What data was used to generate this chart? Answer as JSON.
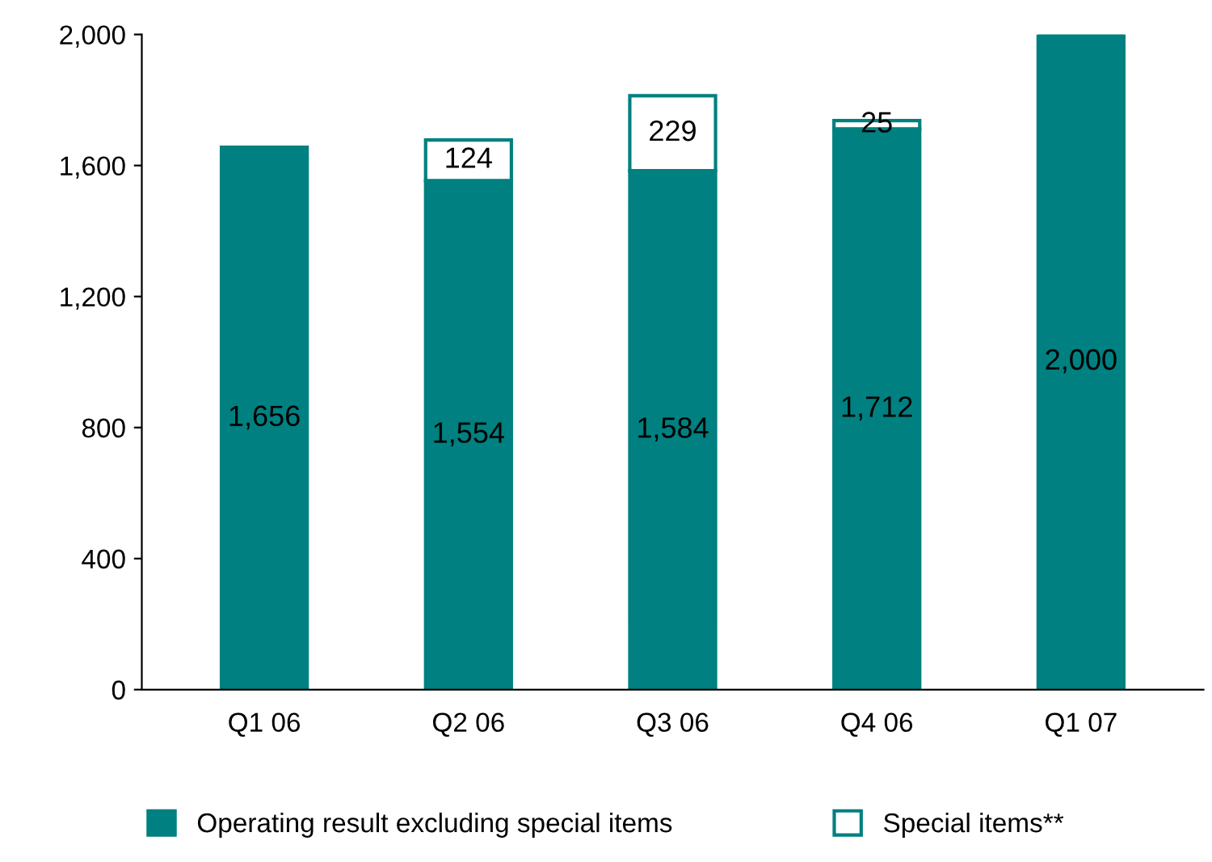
{
  "chart_data": {
    "type": "bar",
    "stacked": true,
    "categories": [
      "Q1 06",
      "Q2 06",
      "Q3 06",
      "Q4 06",
      "Q1 07"
    ],
    "series": [
      {
        "name": "Operating result excluding special items",
        "color": "#008080",
        "values": [
          1656,
          1554,
          1584,
          1712,
          2000
        ],
        "value_labels": [
          "1,656",
          "1,554",
          "1,584",
          "1,712",
          "2,000"
        ]
      },
      {
        "name": "Special items**",
        "color": "#ffffff",
        "values": [
          null,
          124,
          229,
          25,
          null
        ],
        "value_labels": [
          null,
          "124",
          "229",
          "25",
          null
        ]
      }
    ],
    "ylim": [
      0,
      2000
    ],
    "yticks": [
      0,
      {
        "value": 400,
        "label": "400"
      },
      {
        "value": 800,
        "label": "800"
      },
      {
        "value": 1200,
        "label": "1,200"
      },
      {
        "value": 1600,
        "label": "1,600"
      },
      {
        "value": 2000,
        "label": "2,000"
      }
    ],
    "grid": false,
    "legend": "bottom"
  }
}
